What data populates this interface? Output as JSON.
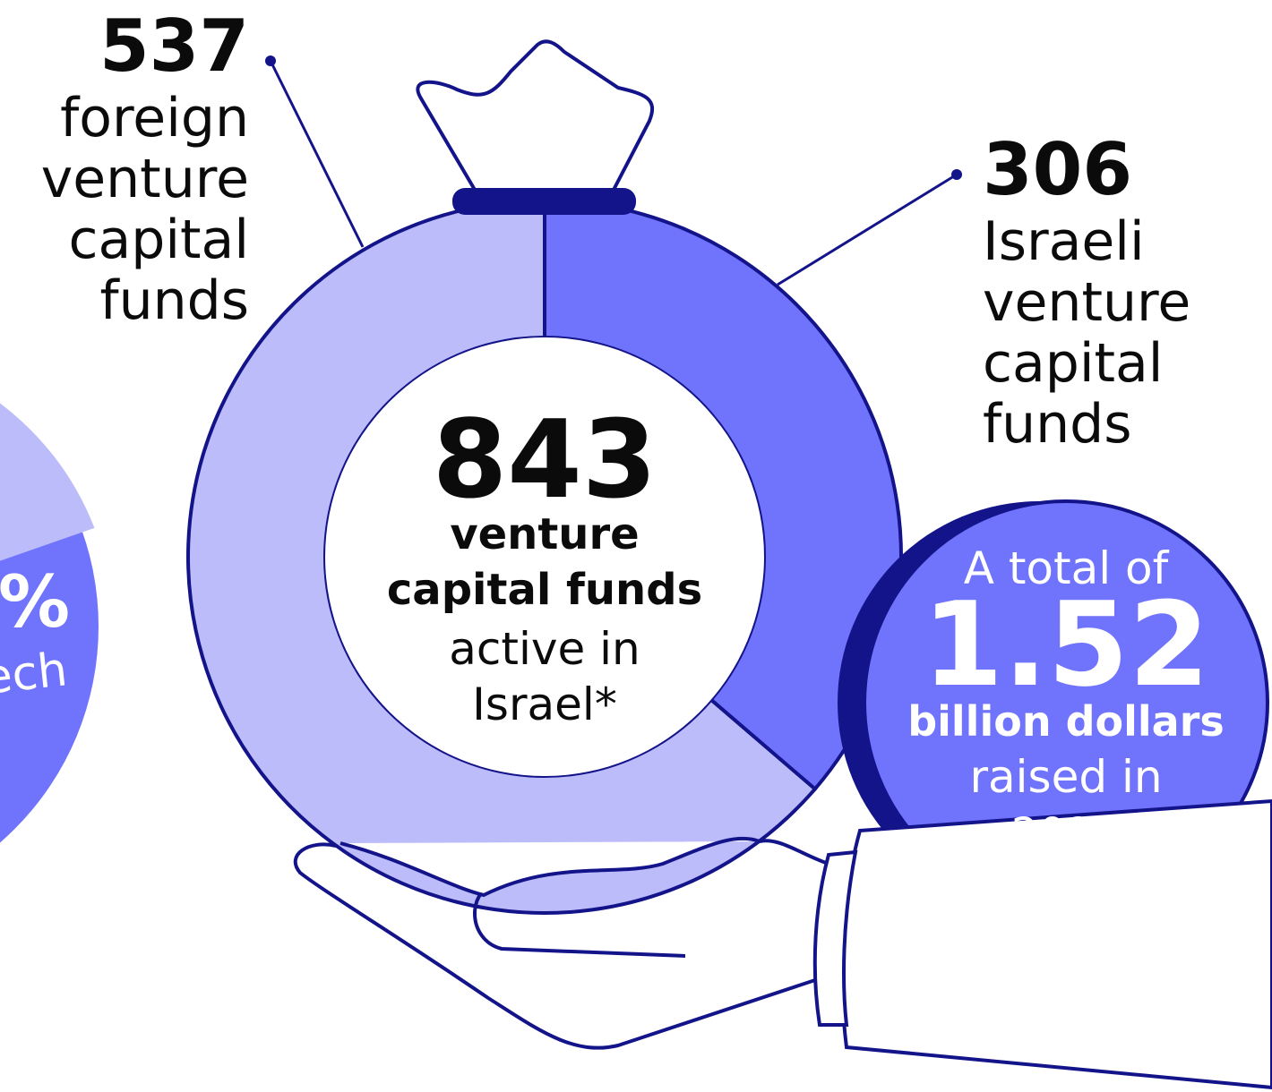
{
  "chart_data": {
    "type": "donut",
    "categories": [
      "foreign venture capital funds",
      "Israeli venture capital funds"
    ],
    "values": [
      537,
      306
    ],
    "colors": [
      "#bcbcfb",
      "#7073fc"
    ],
    "total": 843,
    "center_bold_lines": [
      "venture",
      "capital funds"
    ],
    "center_lines": [
      "active in",
      "Israel*"
    ]
  },
  "coin": {
    "lines": [
      "A total of",
      "1.52",
      "billion dollars",
      "raised in",
      "2023"
    ]
  },
  "edge_pie": {
    "lines": [
      "%",
      "ech"
    ]
  }
}
